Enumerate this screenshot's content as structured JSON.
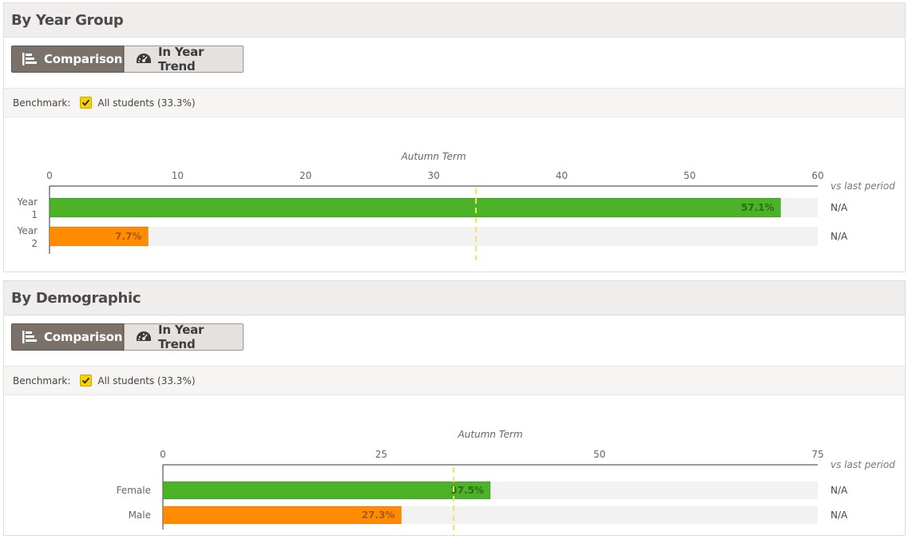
{
  "panels": [
    {
      "title": "By Year Group",
      "buttons": {
        "comparison": "Comparison",
        "trend": "In Year Trend"
      },
      "benchmark": {
        "label": "Benchmark:",
        "option": "All students (33.3%)",
        "checked": true
      }
    },
    {
      "title": "By Demographic",
      "buttons": {
        "comparison": "Comparison",
        "trend": "In Year Trend"
      },
      "benchmark": {
        "label": "Benchmark:",
        "option": "All students (33.3%)",
        "checked": true
      }
    }
  ],
  "chart_data": [
    {
      "type": "bar",
      "orientation": "horizontal",
      "title": "Autumn Term",
      "categories": [
        [
          "Year",
          "1"
        ],
        [
          "Year",
          "2"
        ]
      ],
      "values": [
        57.1,
        7.7
      ],
      "value_labels": [
        "57.1%",
        "7.7%"
      ],
      "colors": [
        "#4cb227",
        "#ff8c00"
      ],
      "label_colors": [
        "#2e6a14",
        "#a9590a"
      ],
      "xlim": [
        0,
        60
      ],
      "ticks": [
        0,
        10,
        20,
        30,
        40,
        50,
        60
      ],
      "benchmark": 33.3,
      "compare_header": "vs last period",
      "compare_values": [
        "N/A",
        "N/A"
      ]
    },
    {
      "type": "bar",
      "orientation": "horizontal",
      "title": "Autumn Term",
      "categories": [
        [
          "Female"
        ],
        [
          "Male"
        ]
      ],
      "values": [
        37.5,
        27.3
      ],
      "value_labels": [
        "37.5%",
        "27.3%"
      ],
      "colors": [
        "#4cb227",
        "#ff8c00"
      ],
      "label_colors": [
        "#2e6a14",
        "#a9590a"
      ],
      "xlim": [
        0,
        75
      ],
      "ticks": [
        0,
        25,
        50,
        75
      ],
      "benchmark": 33.3,
      "compare_header": "vs last period",
      "compare_values": [
        "N/A",
        "N/A"
      ]
    }
  ]
}
